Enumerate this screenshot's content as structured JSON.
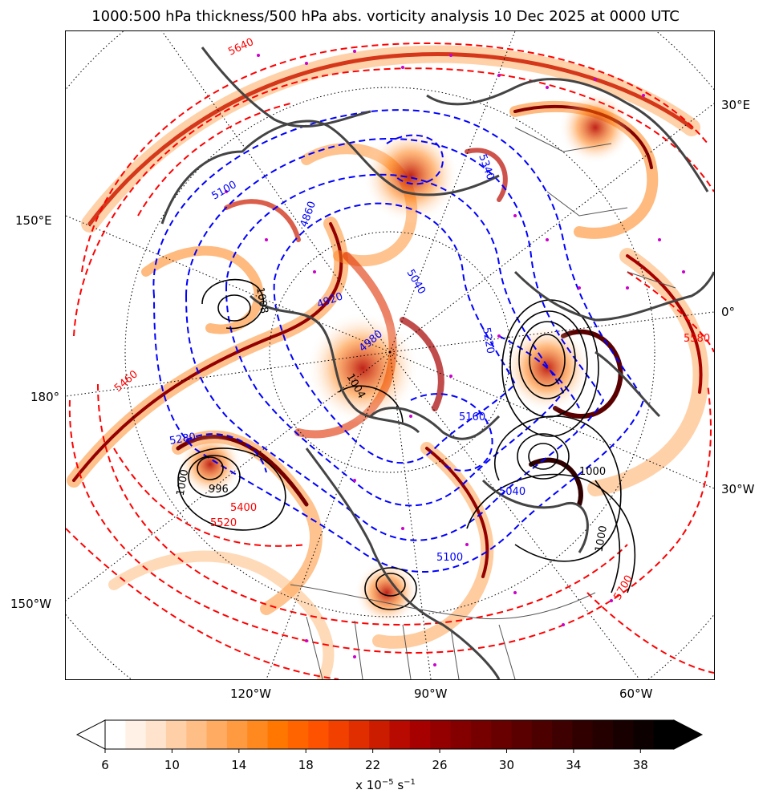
{
  "title": "1000:500 hPa thickness/500 hPa abs. vorticity analysis 10 Dec 2025 at 0000 UTC",
  "graticule_labels": {
    "right_30e": "30°E",
    "right_0": "0°",
    "right_30w": "30°W",
    "left_150e": "150°E",
    "left_180": "180°",
    "left_150w": "150°W",
    "bottom_120w": "120°W",
    "bottom_90w": "90°W",
    "bottom_60w": "60°W"
  },
  "contour_labels": {
    "thickness_red": [
      "5640",
      "5460",
      "5520",
      "5400",
      "5580",
      "5700"
    ],
    "thickness_blue": [
      "5100",
      "4860",
      "5040",
      "4920",
      "4980",
      "5340",
      "5280",
      "5220",
      "5160",
      "5040",
      "5100"
    ],
    "pressure_black": [
      "1000",
      "996",
      "1004",
      "1008",
      "1000",
      "1000"
    ]
  },
  "colorbar": {
    "ticks": [
      "6",
      "10",
      "14",
      "18",
      "22",
      "26",
      "30",
      "34",
      "38"
    ],
    "unit_prefix": "x 10",
    "unit_exp": "−5",
    "unit_suffix": " s",
    "unit_exp2": "−1",
    "colors": [
      "#ffffff",
      "#fff1e6",
      "#ffe3cc",
      "#ffd0a8",
      "#ffbe85",
      "#ffac62",
      "#ff9a40",
      "#ff881f",
      "#ff7600",
      "#ff6400",
      "#ff5200",
      "#f24000",
      "#e02e00",
      "#cc1c00",
      "#b80a00",
      "#a60000",
      "#940000",
      "#840000",
      "#760000",
      "#680000",
      "#5a0000",
      "#4c0000",
      "#3e0000",
      "#300000",
      "#240000",
      "#180000",
      "#0c0000",
      "#000000"
    ],
    "range": [
      6,
      40
    ],
    "extend": "both"
  },
  "colors": {
    "thickness_warm": "#ff0000",
    "thickness_cold": "#0000ff",
    "mslp": "#000000",
    "coast": "#444444",
    "stations": "#cc00cc"
  }
}
